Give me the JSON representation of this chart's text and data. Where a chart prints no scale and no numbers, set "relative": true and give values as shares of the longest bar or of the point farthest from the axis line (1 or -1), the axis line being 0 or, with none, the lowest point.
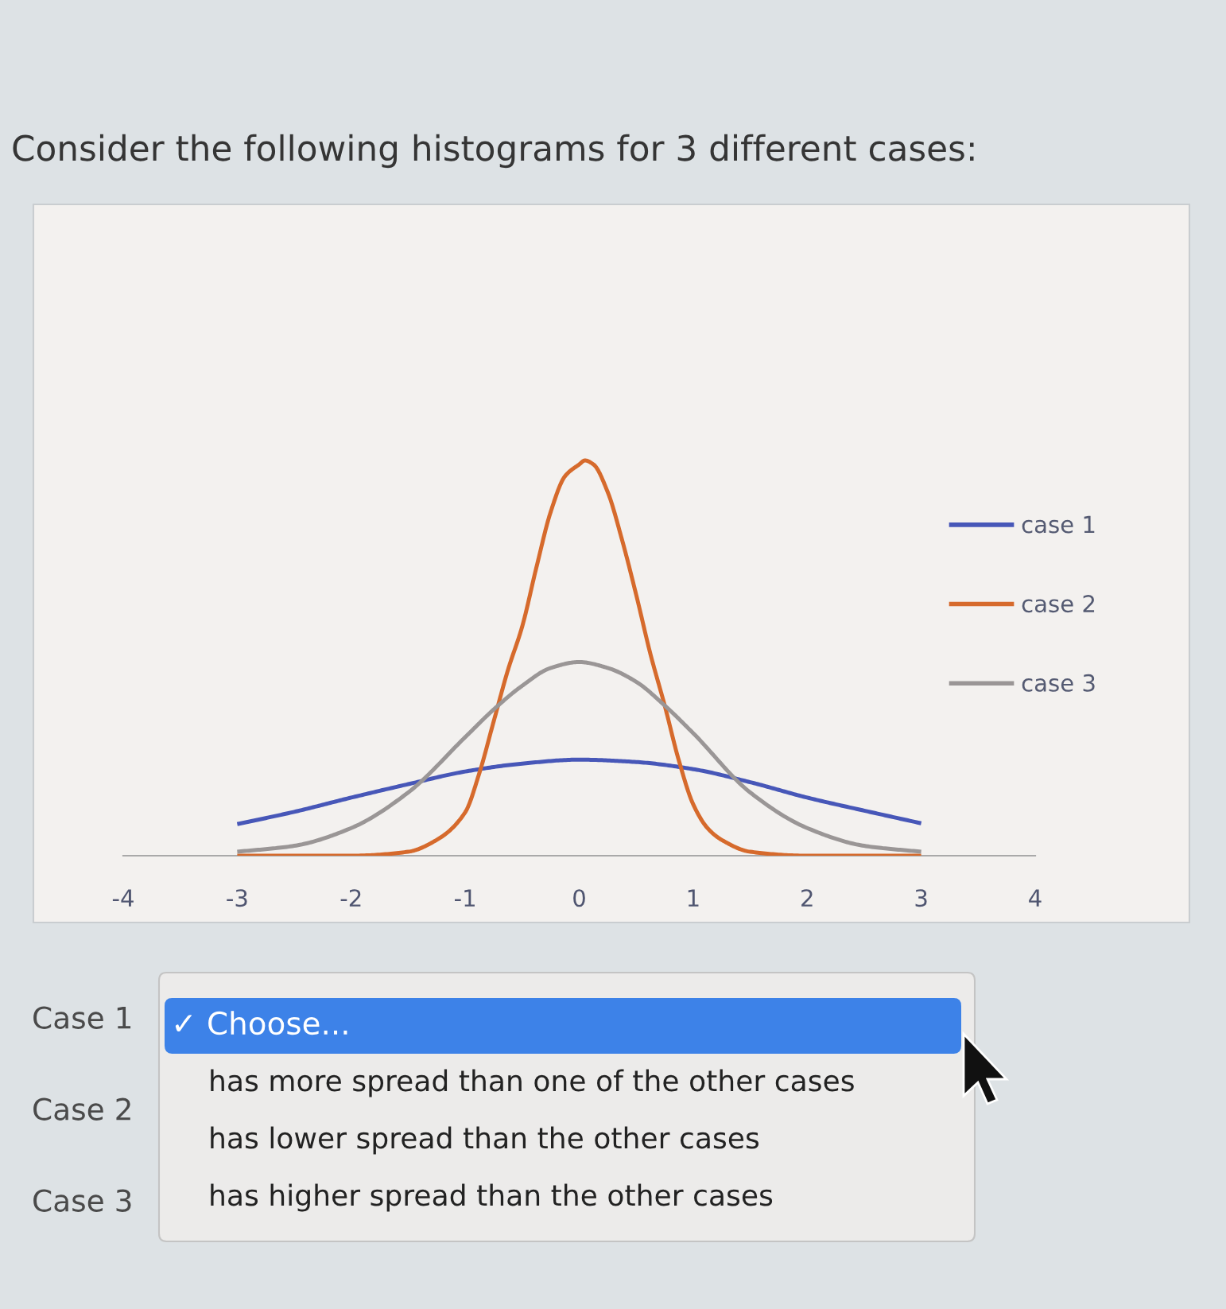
{
  "chart_data": {
    "type": "line",
    "title": "Consider the following histograms for 3 different cases:",
    "relative": true,
    "xlim": [
      -4,
      4
    ],
    "xticks": [
      -4,
      -3,
      -2,
      -1,
      0,
      1,
      2,
      3,
      4
    ],
    "tick_labels": "x",
    "legend": "right",
    "series": [
      {
        "name": "case 1",
        "color": "#4757b8",
        "x": [
          -3,
          -2.5,
          -2,
          -1.5,
          -1,
          -0.5,
          0,
          0.5,
          1,
          1.5,
          2,
          2.5,
          3
        ],
        "values": [
          0.08,
          0.111,
          0.147,
          0.181,
          0.213,
          0.233,
          0.243,
          0.237,
          0.219,
          0.186,
          0.147,
          0.114,
          0.082
        ]
      },
      {
        "name": "case 2",
        "color": "#d66a2c",
        "x": [
          -3,
          -2,
          -1.5,
          -1.25,
          -1,
          -0.875,
          -0.75,
          -0.625,
          -0.5,
          -0.375,
          -0.25,
          -0.125,
          0,
          0.05,
          0.125,
          0.25,
          0.375,
          0.5,
          0.625,
          0.75,
          0.875,
          1,
          1.125,
          1.25,
          1.5,
          2,
          3
        ],
        "values": [
          0,
          0,
          0.01,
          0.04,
          0.11,
          0.21,
          0.34,
          0.47,
          0.58,
          0.73,
          0.87,
          0.96,
          0.99,
          1,
          0.99,
          0.92,
          0.8,
          0.66,
          0.51,
          0.38,
          0.24,
          0.13,
          0.07,
          0.04,
          0.01,
          0,
          0
        ]
      },
      {
        "name": "case 3",
        "color": "#9a9696",
        "x": [
          -3,
          -2.5,
          -2,
          -1.5,
          -1,
          -0.75,
          -0.5,
          -0.25,
          0,
          0.25,
          0.5,
          0.75,
          1,
          1.5,
          2,
          2.5,
          3
        ],
        "values": [
          0.01,
          0.025,
          0.07,
          0.16,
          0.3,
          0.37,
          0.43,
          0.475,
          0.49,
          0.475,
          0.44,
          0.38,
          0.31,
          0.16,
          0.07,
          0.025,
          0.01
        ]
      }
    ],
    "annotations": [
      "Case 1",
      "Case 2",
      "Case 3",
      "✓ Choose...",
      "has more spread than one of the other cases",
      "has lower spread than the other cases",
      "has higher spread than the other cases"
    ]
  }
}
